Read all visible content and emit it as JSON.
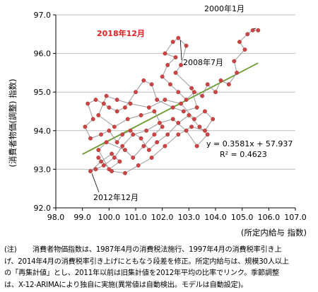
{
  "chart_data": {
    "type": "scatter",
    "title": "",
    "ylabel": "(消費者物価(調整) 指数)",
    "xlabel": "(所定内給与 指数)",
    "xlim": [
      98.0,
      107.0
    ],
    "ylim": [
      92.0,
      97.0
    ],
    "x_ticks": [
      "98.0",
      "99.0",
      "100.0",
      "101.0",
      "102.0",
      "103.0",
      "104.0",
      "105.0",
      "106.0",
      "107.0"
    ],
    "y_ticks": [
      "92.0",
      "93.0",
      "94.0",
      "95.0",
      "96.0",
      "97.0"
    ],
    "grid": "horizontal",
    "series": [
      {
        "mode": "lines+markers",
        "color": "#cc4444",
        "line_color": "#9a9a9a",
        "points": [
          [
            105.6,
            96.6
          ],
          [
            105.4,
            96.6
          ],
          [
            105.2,
            96.5
          ],
          [
            104.9,
            96.3
          ],
          [
            105.1,
            96.1
          ],
          [
            104.7,
            95.8
          ],
          [
            104.8,
            95.5
          ],
          [
            104.5,
            95.2
          ],
          [
            104.2,
            95.3
          ],
          [
            104.0,
            95.0
          ],
          [
            103.7,
            95.2
          ],
          [
            103.5,
            94.9
          ],
          [
            103.2,
            95.0
          ],
          [
            102.9,
            94.8
          ],
          [
            102.6,
            95.0
          ],
          [
            102.3,
            95.2
          ],
          [
            102.0,
            95.4
          ],
          [
            102.2,
            95.7
          ],
          [
            102.5,
            95.9
          ],
          [
            102.1,
            96.0
          ],
          [
            102.4,
            96.3
          ],
          [
            102.6,
            96.4
          ],
          [
            102.9,
            96.2
          ],
          [
            102.7,
            95.7
          ],
          [
            102.5,
            95.5
          ],
          [
            103.1,
            95.1
          ],
          [
            103.3,
            94.6
          ],
          [
            102.8,
            94.5
          ],
          [
            102.4,
            94.6
          ],
          [
            101.8,
            94.8
          ],
          [
            101.6,
            95.2
          ],
          [
            101.3,
            95.3
          ],
          [
            101.0,
            95.0
          ],
          [
            100.6,
            94.6
          ],
          [
            100.3,
            94.5
          ],
          [
            100.0,
            94.6
          ],
          [
            99.8,
            94.7
          ],
          [
            99.5,
            94.8
          ],
          [
            99.2,
            94.7
          ],
          [
            99.4,
            94.3
          ],
          [
            99.1,
            94.1
          ],
          [
            99.3,
            93.8
          ],
          [
            99.7,
            93.9
          ],
          [
            100.0,
            94.0
          ],
          [
            100.3,
            93.7
          ],
          [
            100.5,
            93.9
          ],
          [
            100.8,
            94.0
          ],
          [
            101.2,
            93.8
          ],
          [
            101.5,
            93.5
          ],
          [
            101.8,
            93.7
          ],
          [
            102.2,
            93.9
          ],
          [
            102.6,
            94.2
          ],
          [
            103.0,
            94.4
          ],
          [
            103.4,
            94.1
          ],
          [
            103.7,
            93.9
          ],
          [
            103.3,
            93.6
          ],
          [
            102.9,
            94.0
          ],
          [
            102.4,
            94.3
          ],
          [
            101.9,
            94.2
          ],
          [
            101.4,
            94.0
          ],
          [
            100.9,
            93.9
          ],
          [
            100.5,
            93.6
          ],
          [
            100.2,
            93.3
          ],
          [
            99.8,
            93.1
          ],
          [
            99.5,
            93.0
          ],
          [
            99.3,
            92.95
          ],
          [
            99.7,
            93.2
          ],
          [
            100.1,
            93.4
          ],
          [
            100.4,
            93.2
          ],
          [
            100.0,
            93.0
          ],
          [
            99.6,
            93.5
          ],
          [
            99.9,
            93.7
          ],
          [
            100.6,
            93.5
          ],
          [
            100.9,
            93.3
          ],
          [
            101.3,
            93.6
          ],
          [
            101.7,
            93.9
          ],
          [
            102.0,
            94.1
          ],
          [
            101.7,
            94.5
          ],
          [
            101.2,
            94.4
          ],
          [
            100.7,
            94.3
          ],
          [
            100.2,
            94.1
          ],
          [
            99.6,
            94.4
          ],
          [
            99.9,
            94.9
          ],
          [
            100.3,
            94.8
          ],
          [
            100.8,
            94.7
          ],
          [
            101.5,
            94.6
          ],
          [
            102.1,
            94.8
          ],
          [
            102.7,
            94.7
          ],
          [
            103.2,
            94.3
          ],
          [
            103.6,
            94.5
          ],
          [
            103.9,
            94.3
          ],
          [
            103.6,
            94.0
          ],
          [
            103.1,
            94.1
          ],
          [
            102.6,
            93.9
          ],
          [
            102.1,
            93.6
          ],
          [
            101.6,
            93.3
          ],
          [
            101.1,
            93.1
          ],
          [
            100.6,
            92.9
          ],
          [
            100.1,
            92.95
          ],
          [
            99.6,
            93.3
          ]
        ]
      }
    ],
    "trendline": {
      "type": "linear",
      "slope": 0.3581,
      "intercept": 57.937,
      "x_range": [
        99.0,
        105.6
      ],
      "color": "#6b9a2e"
    },
    "equation": "y = 0.3581x + 57.937",
    "r_squared": "R² = 0.4623",
    "annotations": [
      {
        "text": "2000年1月",
        "color": "#000000",
        "point": [
          105.6,
          96.6
        ]
      },
      {
        "text": "2018年12月",
        "color": "#e02020",
        "point": null
      },
      {
        "text": "2008年7月",
        "color": "#000000",
        "point": [
          102.6,
          96.4
        ]
      },
      {
        "text": "2012年12月",
        "color": "#000000",
        "point": [
          99.3,
          92.95
        ]
      }
    ]
  },
  "note": {
    "header": "(注)",
    "lines": [
      "消費者物価指数は、1987年4月の消費税法施行、1997年4月の消費税率引き上",
      "げ、2014年4月の消費税率引き上げにともなう段差を修正。所定内給与は、規模30人以上",
      "の「再集計値」とし、2011年以前は旧集計値を2012年平均の比率でリンク。季節調整",
      "は、X-12-ARIMAにより独自に実施(異常値は自動検出。モデルは自動設定)。"
    ]
  }
}
